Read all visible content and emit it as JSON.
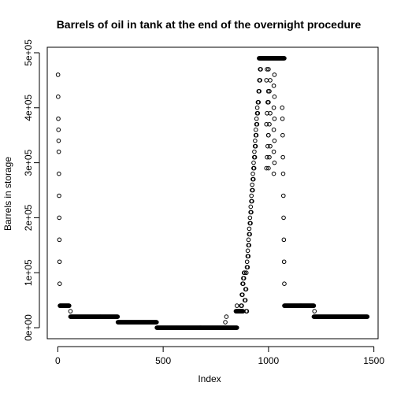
{
  "chart_data": {
    "type": "scatter",
    "title": "Barrels of oil in tank at the end of the overnight procedure",
    "xlabel": "Index",
    "ylabel": "Barrels in storage",
    "xlim": [
      -50,
      1520
    ],
    "ylim": [
      -20000,
      510000
    ],
    "x_ticks": [
      0,
      500,
      1000,
      1500
    ],
    "x_tick_labels": [
      "0",
      "500",
      "1000",
      "1500"
    ],
    "y_ticks": [
      0,
      100000,
      200000,
      300000,
      400000,
      500000
    ],
    "y_tick_labels": [
      "0e+00",
      "1e+05",
      "2e+05",
      "3e+05",
      "4e+05",
      "5e+05"
    ],
    "marker": "open-circle",
    "grid": false,
    "legend": "none",
    "series": [
      {
        "segments": [
          {
            "x_from": 1,
            "x_to": 9,
            "values": [
              460000,
              420000,
              380000,
              360000,
              340000,
              320000,
              280000,
              240000,
              200000,
              160000,
              120000,
              80000
            ]
          },
          {
            "x_from": 10,
            "x_to": 55,
            "constant": 40000
          },
          {
            "x": 60,
            "value": 30000
          },
          {
            "x_from": 60,
            "x_to": 285,
            "constant": 20000
          },
          {
            "x_from": 285,
            "x_to": 470,
            "constant": 10000
          },
          {
            "x_from": 470,
            "x_to": 850,
            "constant": 0
          },
          {
            "x": 795,
            "value": 10000
          },
          {
            "x": 800,
            "value": 20000
          },
          {
            "x_from": 845,
            "x_to": 880,
            "constant": 30000
          },
          {
            "x": 850,
            "value": 40000
          },
          {
            "x_from": 870,
            "x_to": 960,
            "scatter_rise": [
              40000,
              60000,
              80000,
              90000,
              100000,
              50000,
              70000,
              30000,
              110000,
              130000,
              150000,
              170000,
              190000,
              210000,
              230000,
              250000,
              270000,
              290000,
              310000,
              330000,
              350000,
              370000,
              390000,
              410000,
              430000,
              450000,
              470000
            ]
          },
          {
            "x_from": 955,
            "x_to": 1075,
            "constant": 490000
          },
          {
            "x_from": 990,
            "x_to": 1030,
            "scatter_band": [
              290000,
              310000,
              330000,
              350000,
              370000,
              390000,
              410000,
              430000,
              450000,
              470000
            ]
          },
          {
            "x_from": 1065,
            "x_to": 1075,
            "values": [
              400000,
              380000,
              350000,
              310000,
              280000,
              240000,
              200000,
              160000,
              120000,
              80000
            ]
          },
          {
            "x_from": 1075,
            "x_to": 1215,
            "constant": 40000
          },
          {
            "x": 1218,
            "value": 30000
          },
          {
            "x_from": 1215,
            "x_to": 1470,
            "constant": 20000
          }
        ]
      }
    ]
  }
}
